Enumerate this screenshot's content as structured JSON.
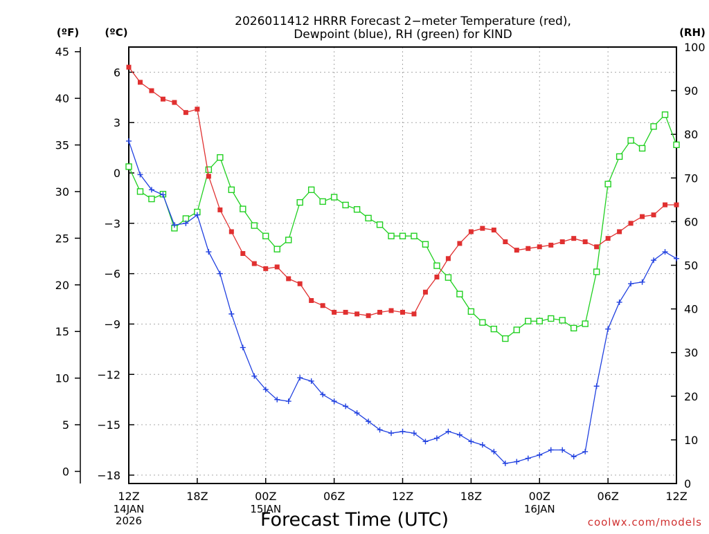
{
  "chart_data": {
    "type": "line",
    "title_lines": [
      "2026011412 HRRR Forecast 2−meter Temperature (red),",
      "Dewpoint (blue), RH (green) for KIND"
    ],
    "xlabel": "Forecast Time (UTC)",
    "watermark": "coolwx.com/models",
    "axes": {
      "fahrenheit": {
        "unit_label": "(ºF)",
        "ticks": [
          0,
          5,
          10,
          15,
          20,
          25,
          30,
          35,
          40,
          45
        ]
      },
      "celsius": {
        "unit_label": "(ºC)",
        "range": [
          -18.5,
          7.5
        ],
        "ticks": [
          -18,
          -15,
          -12,
          -9,
          -6,
          -3,
          0,
          3,
          6
        ]
      },
      "rh": {
        "unit_label": "(RH)",
        "range": [
          0,
          100
        ],
        "ticks": [
          0,
          10,
          20,
          30,
          40,
          50,
          60,
          70,
          80,
          90,
          100
        ]
      },
      "x": {
        "unit": "forecast hour",
        "range": [
          0,
          48
        ],
        "ticks": [
          {
            "hour": 0,
            "label": "12Z",
            "sub": [
              "14JAN",
              "2026"
            ]
          },
          {
            "hour": 6,
            "label": "18Z",
            "sub": []
          },
          {
            "hour": 12,
            "label": "00Z",
            "sub": [
              "15JAN"
            ]
          },
          {
            "hour": 18,
            "label": "06Z",
            "sub": []
          },
          {
            "hour": 24,
            "label": "12Z",
            "sub": []
          },
          {
            "hour": 30,
            "label": "18Z",
            "sub": []
          },
          {
            "hour": 36,
            "label": "00Z",
            "sub": [
              "16JAN"
            ]
          },
          {
            "hour": 42,
            "label": "06Z",
            "sub": []
          },
          {
            "hour": 48,
            "label": "12Z",
            "sub": []
          }
        ]
      }
    },
    "grid": true,
    "series": [
      {
        "name": "Temperature",
        "axis": "celsius",
        "color": "#e03030",
        "marker": "filled-square",
        "hours": [
          0,
          1,
          2,
          3,
          4,
          5,
          6,
          7,
          8,
          9,
          10,
          11,
          12,
          13,
          14,
          15,
          16,
          17,
          18,
          19,
          20,
          21,
          22,
          23,
          24,
          25,
          26,
          27,
          28,
          29,
          30,
          31,
          32,
          33,
          34,
          35,
          36,
          37,
          38,
          39,
          40,
          41,
          42,
          43,
          44,
          45,
          46,
          47,
          48
        ],
        "values": [
          6.3,
          5.4,
          4.9,
          4.4,
          4.2,
          3.6,
          3.8,
          -0.2,
          -2.2,
          -3.5,
          -4.8,
          -5.4,
          -5.7,
          -5.6,
          -6.3,
          -6.6,
          -7.6,
          -7.9,
          -8.3,
          -8.3,
          -8.4,
          -8.5,
          -8.3,
          -8.2,
          -8.3,
          -8.4,
          -7.1,
          -6.2,
          -5.1,
          -4.2,
          -3.5,
          -3.3,
          -3.4,
          -4.1,
          -4.6,
          -4.5,
          -4.4,
          -4.3,
          -4.1,
          -3.9,
          -4.1,
          -4.4,
          -3.9,
          -3.5,
          -3.0,
          -2.6,
          -2.5,
          -1.9,
          -1.9
        ]
      },
      {
        "name": "Dewpoint",
        "axis": "celsius",
        "color": "#2040e0",
        "marker": "plus",
        "hours": [
          0,
          1,
          2,
          3,
          4,
          5,
          6,
          7,
          8,
          9,
          10,
          11,
          12,
          13,
          14,
          15,
          16,
          17,
          18,
          19,
          20,
          21,
          22,
          23,
          24,
          25,
          26,
          27,
          28,
          29,
          30,
          31,
          32,
          33,
          34,
          35,
          36,
          37,
          38,
          39,
          40,
          41,
          42,
          43,
          44,
          45,
          46,
          47,
          48
        ],
        "values": [
          1.9,
          -0.1,
          -1.0,
          -1.3,
          -3.1,
          -3.0,
          -2.5,
          -4.7,
          -6.0,
          -8.4,
          -10.4,
          -12.1,
          -12.9,
          -13.5,
          -13.6,
          -12.2,
          -12.4,
          -13.2,
          -13.6,
          -13.9,
          -14.3,
          -14.8,
          -15.3,
          -15.5,
          -15.4,
          -15.5,
          -16.0,
          -15.8,
          -15.4,
          -15.6,
          -16.0,
          -16.2,
          -16.6,
          -17.3,
          -17.2,
          -17.0,
          -16.8,
          -16.5,
          -16.5,
          -16.9,
          -16.6,
          -12.7,
          -9.3,
          -7.7,
          -6.6,
          -6.5,
          -5.2,
          -4.7,
          -5.1
        ]
      },
      {
        "name": "RH",
        "axis": "rh",
        "color": "#20d020",
        "marker": "open-square",
        "hours": [
          0,
          1,
          2,
          3,
          4,
          5,
          6,
          7,
          8,
          9,
          10,
          11,
          12,
          13,
          14,
          15,
          16,
          17,
          18,
          19,
          20,
          21,
          22,
          23,
          24,
          25,
          26,
          27,
          28,
          29,
          30,
          31,
          32,
          33,
          34,
          35,
          36,
          37,
          38,
          39,
          40,
          41,
          42,
          43,
          44,
          45,
          46,
          47,
          48
        ],
        "values": [
          72.6,
          66.9,
          65.2,
          66.3,
          58.5,
          60.7,
          62.2,
          71.9,
          74.7,
          67.3,
          62.9,
          59.1,
          56.7,
          53.7,
          55.8,
          64.4,
          67.3,
          64.6,
          65.6,
          63.8,
          62.8,
          60.8,
          59.3,
          56.7,
          56.7,
          56.7,
          54.8,
          49.9,
          47.2,
          43.4,
          39.4,
          36.9,
          35.4,
          33.2,
          35.2,
          37.2,
          37.2,
          37.8,
          37.4,
          35.6,
          36.6,
          48.5,
          68.6,
          74.9,
          78.6,
          76.8,
          81.8,
          84.5,
          77.6
        ]
      }
    ]
  }
}
